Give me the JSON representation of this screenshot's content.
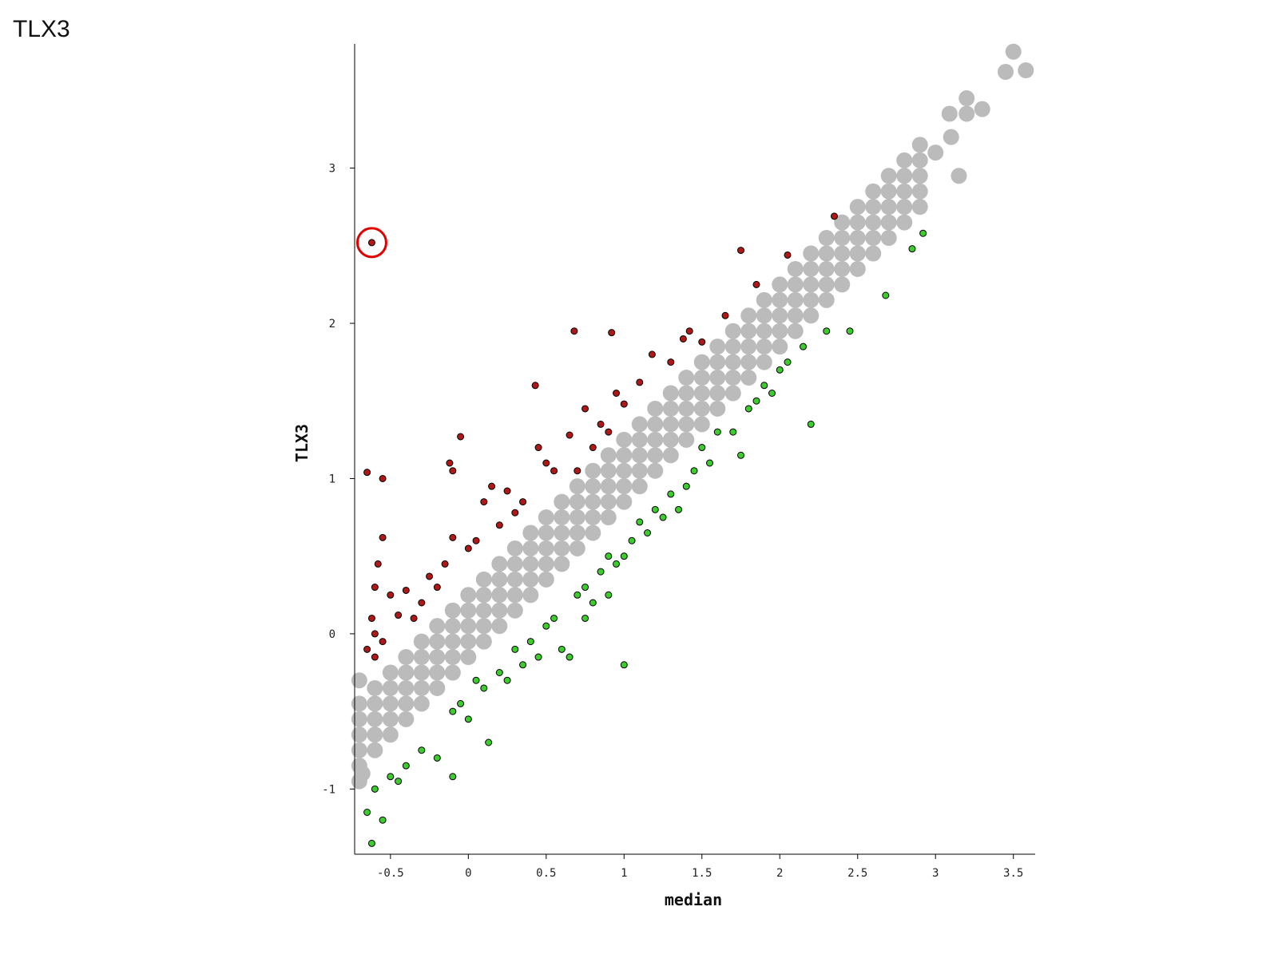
{
  "chart_data": {
    "type": "scatter",
    "title": "TLX3",
    "x_label": "median",
    "y_label": "TLX3",
    "xlim": [
      -0.73,
      3.64
    ],
    "ylim": [
      -1.42,
      3.8
    ],
    "xticks": [
      -0.5,
      0,
      0.5,
      1,
      1.5,
      2,
      2.5,
      3,
      3.5
    ],
    "yticks": [
      -1,
      0,
      1,
      2,
      3
    ],
    "highlight": {
      "series": 6,
      "index": 0,
      "color": "#e00000"
    },
    "series": [
      {
        "color": "#bbbbbb",
        "x": [
          -0.7,
          -0.6,
          -0.5,
          -0.4,
          -0.3,
          -0.2,
          -0.1,
          0,
          0.1,
          0.2,
          0.3,
          0.4,
          0.5,
          0.6,
          0.7,
          0.8,
          0.9,
          1,
          1.1,
          1.2,
          1.3,
          1.4,
          1.5,
          1.6,
          1.7,
          1.8,
          1.9,
          2,
          2.1,
          2.2,
          2.3,
          2.4,
          2.5,
          2.6,
          2.7,
          2.8,
          2.9
        ],
        "values": [
          -0.85,
          -0.75,
          -0.65,
          -0.55,
          -0.45,
          -0.35,
          -0.25,
          -0.15,
          -0.05,
          0.05,
          0.15,
          0.25,
          0.35,
          0.45,
          0.55,
          0.65,
          0.75,
          0.85,
          0.95,
          1.05,
          1.15,
          1.25,
          1.35,
          1.45,
          1.55,
          1.65,
          1.75,
          1.85,
          1.95,
          2.05,
          2.15,
          2.25,
          2.35,
          2.45,
          2.55,
          2.65,
          2.75
        ]
      },
      {
        "color": "#bbbbbb",
        "x": [
          -0.7,
          -0.6,
          -0.5,
          -0.4,
          -0.3,
          -0.2,
          -0.1,
          0,
          0.1,
          0.2,
          0.3,
          0.4,
          0.5,
          0.6,
          0.7,
          0.8,
          0.9,
          1,
          1.1,
          1.2,
          1.3,
          1.4,
          1.5,
          1.6,
          1.7,
          1.8,
          1.9,
          2,
          2.1,
          2.2,
          2.3,
          2.4,
          2.5,
          2.6,
          2.7,
          2.8,
          2.9
        ],
        "values": [
          -0.75,
          -0.65,
          -0.55,
          -0.45,
          -0.35,
          -0.25,
          -0.15,
          -0.05,
          0.05,
          0.15,
          0.25,
          0.35,
          0.45,
          0.55,
          0.65,
          0.75,
          0.85,
          0.95,
          1.05,
          1.15,
          1.25,
          1.35,
          1.45,
          1.55,
          1.65,
          1.75,
          1.85,
          1.95,
          2.05,
          2.15,
          2.25,
          2.35,
          2.45,
          2.55,
          2.65,
          2.75,
          2.85
        ]
      },
      {
        "color": "#bbbbbb",
        "x": [
          -0.7,
          -0.6,
          -0.5,
          -0.4,
          -0.3,
          -0.2,
          -0.1,
          0,
          0.1,
          0.2,
          0.3,
          0.4,
          0.5,
          0.6,
          0.7,
          0.8,
          0.9,
          1,
          1.1,
          1.2,
          1.3,
          1.4,
          1.5,
          1.6,
          1.7,
          1.8,
          1.9,
          2,
          2.1,
          2.2,
          2.3,
          2.4,
          2.5,
          2.6,
          2.7,
          2.8,
          2.9
        ],
        "values": [
          -0.65,
          -0.55,
          -0.45,
          -0.35,
          -0.25,
          -0.15,
          -0.05,
          0.05,
          0.15,
          0.25,
          0.35,
          0.45,
          0.55,
          0.65,
          0.75,
          0.85,
          0.95,
          1.05,
          1.15,
          1.25,
          1.35,
          1.45,
          1.55,
          1.65,
          1.75,
          1.85,
          1.95,
          2.05,
          2.15,
          2.25,
          2.35,
          2.45,
          2.55,
          2.65,
          2.75,
          2.85,
          2.95
        ]
      },
      {
        "color": "#bbbbbb",
        "x": [
          -0.7,
          -0.6,
          -0.5,
          -0.4,
          -0.3,
          -0.2,
          -0.1,
          0,
          0.1,
          0.2,
          0.3,
          0.4,
          0.5,
          0.6,
          0.7,
          0.8,
          0.9,
          1,
          1.1,
          1.2,
          1.3,
          1.4,
          1.5,
          1.6,
          1.7,
          1.8,
          1.9,
          2,
          2.1,
          2.2,
          2.3,
          2.4,
          2.5,
          2.6,
          2.7,
          2.8,
          2.9
        ],
        "values": [
          -0.55,
          -0.45,
          -0.35,
          -0.25,
          -0.15,
          -0.05,
          0.05,
          0.15,
          0.25,
          0.35,
          0.45,
          0.55,
          0.65,
          0.75,
          0.85,
          0.95,
          1.05,
          1.15,
          1.25,
          1.35,
          1.45,
          1.55,
          1.65,
          1.75,
          1.85,
          1.95,
          2.05,
          2.15,
          2.25,
          2.35,
          2.45,
          2.55,
          2.65,
          2.75,
          2.85,
          2.95,
          3.05
        ]
      },
      {
        "color": "#bbbbbb",
        "x": [
          -0.7,
          -0.6,
          -0.5,
          -0.4,
          -0.3,
          -0.2,
          -0.1,
          0,
          0.1,
          0.2,
          0.3,
          0.4,
          0.5,
          0.6,
          0.7,
          0.8,
          0.9,
          1,
          1.1,
          1.2,
          1.3,
          1.4,
          1.5,
          1.6,
          1.7,
          1.8,
          1.9,
          2,
          2.1,
          2.2,
          2.3,
          2.4,
          2.5,
          2.6,
          2.7,
          2.8,
          2.9
        ],
        "values": [
          -0.45,
          -0.35,
          -0.25,
          -0.15,
          -0.05,
          0.05,
          0.15,
          0.25,
          0.35,
          0.45,
          0.55,
          0.65,
          0.75,
          0.85,
          0.95,
          1.05,
          1.15,
          1.25,
          1.35,
          1.45,
          1.55,
          1.65,
          1.75,
          1.85,
          1.95,
          2.05,
          2.15,
          2.25,
          2.35,
          2.45,
          2.55,
          2.65,
          2.75,
          2.85,
          2.95,
          3.05,
          3.15
        ]
      },
      {
        "color": "#bbbbbb",
        "x": [
          3.0,
          3.1,
          3.2,
          3.3,
          3.5,
          3.45,
          3.58,
          3.2,
          3.09,
          -0.7,
          -0.7,
          3.15,
          -0.68
        ],
        "values": [
          3.1,
          3.2,
          3.35,
          3.38,
          3.75,
          3.62,
          3.63,
          3.45,
          3.35,
          -0.95,
          -0.3,
          2.95,
          -0.9
        ]
      },
      {
        "color": "#b01818",
        "x": [
          -0.62,
          -0.65,
          -0.55,
          -0.55,
          -0.58,
          -0.6,
          -0.62,
          -0.6,
          -0.65,
          -0.6,
          -0.55,
          -0.5,
          -0.45,
          -0.4,
          -0.35,
          -0.3,
          -0.25,
          -0.2,
          -0.15,
          -0.12,
          -0.1,
          -0.05,
          0.0,
          0.05,
          0.1,
          0.15,
          0.2,
          0.25,
          0.3,
          0.35,
          0.45,
          0.5,
          0.55,
          0.65,
          0.7,
          0.75,
          0.8,
          0.85,
          0.9,
          0.95,
          1.0,
          1.1,
          1.18,
          1.3,
          1.38,
          1.42,
          1.5,
          0.68,
          0.92,
          1.65,
          1.75,
          2.05,
          1.85,
          2.35,
          0.43,
          -0.1
        ],
        "values": [
          2.52,
          1.04,
          1.0,
          0.62,
          0.45,
          0.3,
          0.1,
          0.0,
          -0.1,
          -0.15,
          -0.05,
          0.25,
          0.12,
          0.28,
          0.1,
          0.2,
          0.37,
          0.3,
          0.45,
          1.1,
          0.62,
          1.27,
          0.55,
          0.6,
          0.85,
          0.95,
          0.7,
          0.92,
          0.78,
          0.85,
          1.2,
          1.1,
          1.05,
          1.28,
          1.05,
          1.45,
          1.2,
          1.35,
          1.3,
          1.55,
          1.48,
          1.62,
          1.8,
          1.75,
          1.9,
          1.95,
          1.88,
          1.95,
          1.94,
          2.05,
          2.47,
          2.44,
          2.25,
          2.69,
          1.6,
          1.05
        ]
      },
      {
        "color": "#3ccc2c",
        "x": [
          -0.65,
          -0.62,
          -0.6,
          -0.55,
          -0.5,
          -0.45,
          -0.4,
          -0.3,
          -0.2,
          -0.1,
          -0.1,
          -0.05,
          0.0,
          0.05,
          0.1,
          0.13,
          0.2,
          0.25,
          0.3,
          0.35,
          0.4,
          0.45,
          0.5,
          0.55,
          0.6,
          0.65,
          0.7,
          0.75,
          0.8,
          0.85,
          0.9,
          0.95,
          1.0,
          1.0,
          1.05,
          1.1,
          1.15,
          1.2,
          1.25,
          1.3,
          1.35,
          1.4,
          1.45,
          1.5,
          1.55,
          1.6,
          1.7,
          1.75,
          1.8,
          1.85,
          1.9,
          1.95,
          2.0,
          2.05,
          2.15,
          2.2,
          2.3,
          2.45,
          2.68,
          2.85,
          2.92,
          0.75,
          0.9
        ],
        "values": [
          -1.15,
          -1.35,
          -1.0,
          -1.2,
          -0.92,
          -0.95,
          -0.85,
          -0.75,
          -0.8,
          -0.92,
          -0.5,
          -0.45,
          -0.55,
          -0.3,
          -0.35,
          -0.7,
          -0.25,
          -0.3,
          -0.1,
          -0.2,
          -0.05,
          -0.15,
          0.05,
          0.1,
          -0.1,
          -0.15,
          0.25,
          0.3,
          0.2,
          0.4,
          0.5,
          0.45,
          0.5,
          -0.2,
          0.6,
          0.72,
          0.65,
          0.8,
          0.75,
          0.9,
          0.8,
          0.95,
          1.05,
          1.2,
          1.1,
          1.3,
          1.3,
          1.15,
          1.45,
          1.5,
          1.6,
          1.55,
          1.7,
          1.75,
          1.85,
          1.35,
          1.95,
          1.95,
          2.18,
          2.48,
          2.58,
          0.1,
          0.25
        ]
      }
    ]
  }
}
